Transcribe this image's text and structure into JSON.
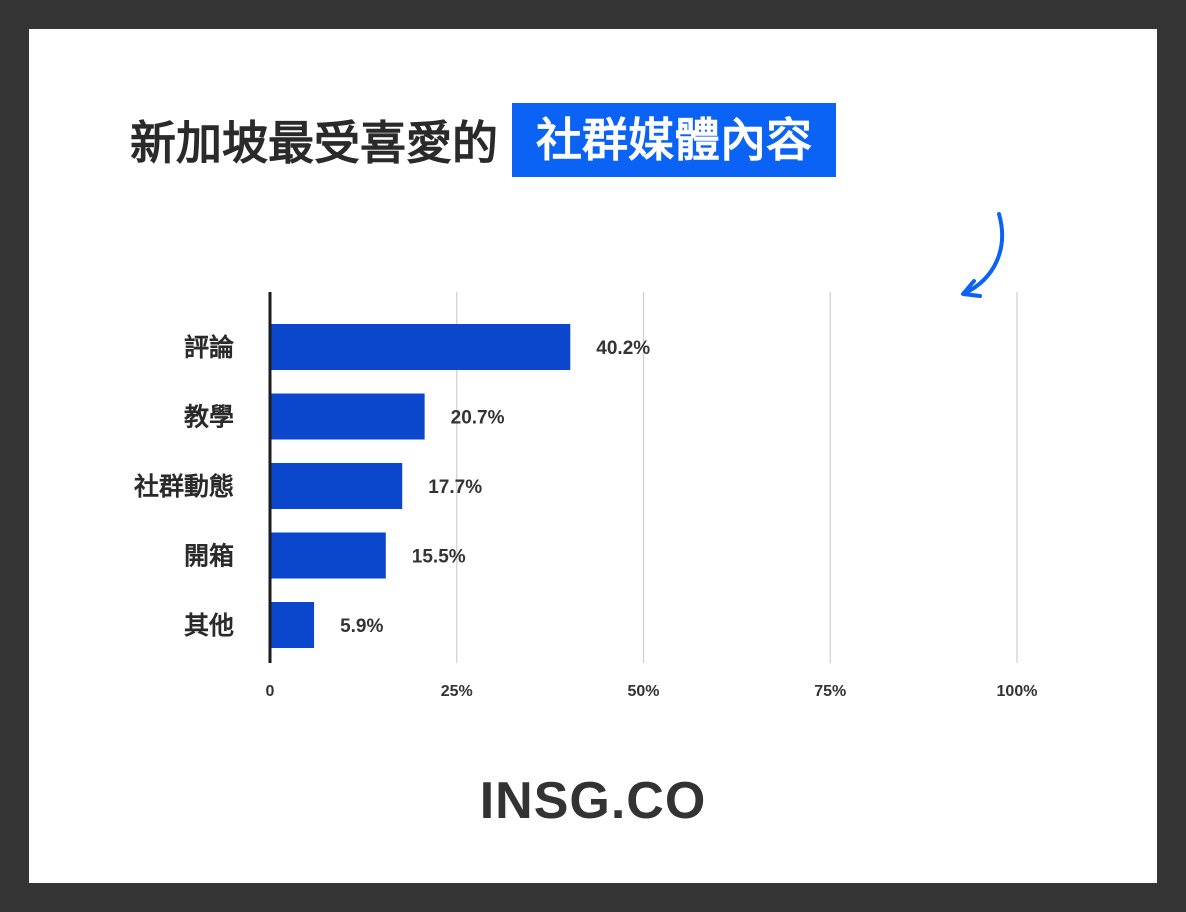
{
  "title": {
    "main": "新加坡最受喜愛的",
    "highlight": "社群媒體內容"
  },
  "colors": {
    "bar": "#0a47cc",
    "highlight": "#0b63f6",
    "arrow": "#0b63f6",
    "frame": "#353535"
  },
  "logo": "INSG.CO",
  "chart_data": {
    "type": "bar",
    "orientation": "horizontal",
    "categories": [
      "評論",
      "教學",
      "社群動態",
      "開箱",
      "其他"
    ],
    "values": [
      40.2,
      20.7,
      17.7,
      15.5,
      5.9
    ],
    "value_labels": [
      "40.2%",
      "20.7%",
      "17.7%",
      "15.5%",
      "5.9%"
    ],
    "xlim": [
      0,
      100
    ],
    "xticks": [
      0,
      25,
      50,
      75,
      100
    ],
    "xtick_labels": [
      "0",
      "25%",
      "50%",
      "75%",
      "100%"
    ],
    "grid": true
  }
}
